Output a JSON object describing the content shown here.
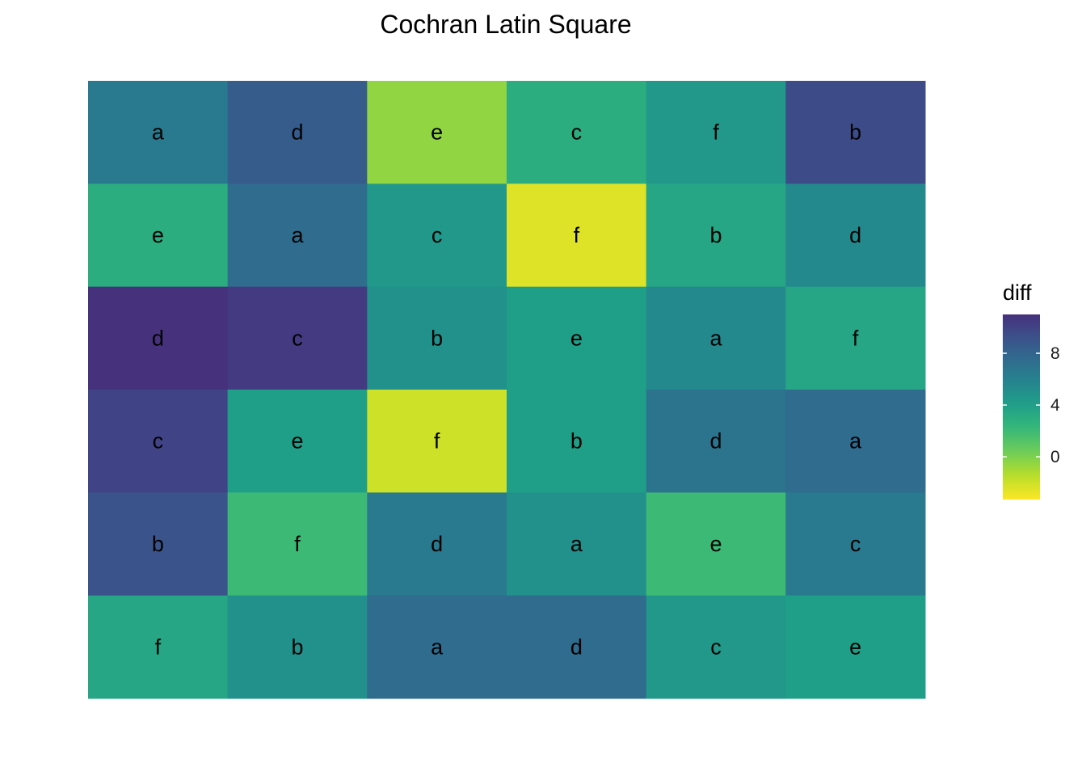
{
  "chart_data": {
    "type": "heatmap",
    "title": "Cochran Latin Square",
    "xlabel": "",
    "ylabel": "",
    "grid": false,
    "legend": {
      "title": "diff",
      "placement": "right",
      "ticks": [
        0,
        4,
        8
      ],
      "range": [
        -3.3,
        11
      ],
      "palette": "viridis-reversed"
    },
    "rows": [
      {
        "labels": [
          "a",
          "d",
          "e",
          "c",
          "f",
          "b"
        ],
        "values": [
          6.5,
          8.5,
          -0.5,
          3.0,
          4.5,
          9.5
        ]
      },
      {
        "labels": [
          "e",
          "a",
          "c",
          "f",
          "b",
          "d"
        ],
        "values": [
          3.0,
          7.5,
          4.5,
          -2.5,
          3.5,
          5.5
        ]
      },
      {
        "labels": [
          "d",
          "c",
          "b",
          "e",
          "a",
          "f"
        ],
        "values": [
          11.0,
          10.5,
          5.0,
          4.0,
          5.5,
          3.5
        ]
      },
      {
        "labels": [
          "c",
          "e",
          "f",
          "b",
          "d",
          "a"
        ],
        "values": [
          10.0,
          4.0,
          -2.0,
          4.0,
          7.0,
          7.5
        ]
      },
      {
        "labels": [
          "b",
          "f",
          "d",
          "a",
          "e",
          "c"
        ],
        "values": [
          9.0,
          2.0,
          6.5,
          5.0,
          2.0,
          6.5
        ]
      },
      {
        "labels": [
          "f",
          "b",
          "a",
          "d",
          "c",
          "e"
        ],
        "values": [
          3.5,
          5.0,
          7.5,
          7.5,
          4.5,
          4.0
        ]
      }
    ]
  }
}
